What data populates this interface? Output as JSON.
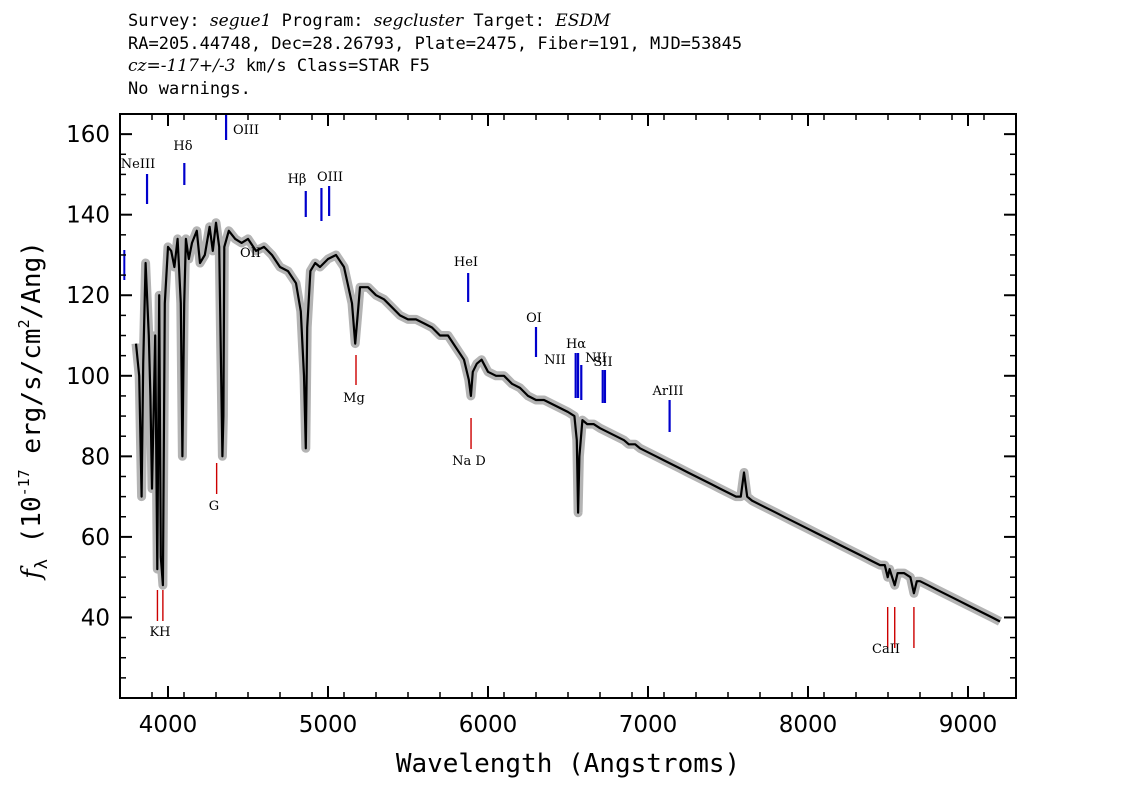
{
  "header": {
    "survey_label": "Survey:",
    "survey": "segue1",
    "program_label": "Program:",
    "program": "segcluster",
    "target_label": "Target:",
    "target": "ESDM",
    "line2": "RA=205.44748, Dec=28.26793, Plate=2475, Fiber=191, MJD=53845",
    "cz": "cz=-117+/-3",
    "line3_rest": " km/s Class=STAR F5",
    "line4": "No warnings."
  },
  "chart_data": {
    "type": "line",
    "xlabel": "Wavelength (Angstroms)",
    "ylabel_prefix": "f",
    "ylabel_sub": "λ",
    "ylabel_main": " (10",
    "ylabel_exp": "-17",
    "ylabel_units": " erg/s/cm",
    "ylabel_sq": "2",
    "ylabel_end": "/Ang)",
    "xlim": [
      3700,
      9300
    ],
    "ylim": [
      20,
      165
    ],
    "x_ticks": [
      4000,
      5000,
      6000,
      7000,
      8000,
      9000
    ],
    "x_tick_labels": [
      "4000",
      "5000",
      "6000",
      "7000",
      "8000",
      "9000"
    ],
    "y_ticks": [
      40,
      60,
      80,
      100,
      120,
      140,
      160
    ],
    "y_tick_labels": [
      "40",
      "60",
      "80",
      "100",
      "120",
      "140",
      "160"
    ],
    "colors": {
      "flux": "#000000",
      "error": "#b4b4b4",
      "emission": "#0000cc",
      "absorption": "#cc0000"
    },
    "series": [
      {
        "x": [
          3800,
          3820,
          3835,
          3845,
          3860,
          3880,
          3890,
          3900,
          3920,
          3933,
          3945,
          3955,
          3968,
          3980,
          4000,
          4020,
          4040,
          4060,
          4080,
          4090,
          4101,
          4112,
          4130,
          4150,
          4180,
          4200,
          4230,
          4260,
          4280,
          4300,
          4320,
          4340,
          4346,
          4352,
          4380,
          4420,
          4460,
          4500,
          4550,
          4600,
          4650,
          4700,
          4750,
          4800,
          4830,
          4850,
          4861,
          4870,
          4890,
          4920,
          4950,
          5000,
          5050,
          5100,
          5150,
          5170,
          5183,
          5200,
          5250,
          5300,
          5350,
          5400,
          5450,
          5500,
          5550,
          5600,
          5650,
          5700,
          5750,
          5800,
          5850,
          5880,
          5893,
          5905,
          5930,
          5960,
          6000,
          6050,
          6100,
          6150,
          6200,
          6250,
          6300,
          6350,
          6400,
          6450,
          6500,
          6540,
          6555,
          6563,
          6571,
          6590,
          6620,
          6660,
          6700,
          6750,
          6800,
          6850,
          6880,
          6900,
          6920,
          6950,
          7000,
          7050,
          7100,
          7150,
          7200,
          7250,
          7300,
          7350,
          7400,
          7450,
          7500,
          7550,
          7580,
          7600,
          7620,
          7650,
          7700,
          7750,
          7800,
          7850,
          7900,
          7950,
          8000,
          8050,
          8100,
          8150,
          8200,
          8250,
          8300,
          8350,
          8400,
          8450,
          8480,
          8498,
          8510,
          8542,
          8560,
          8600,
          8640,
          8662,
          8680,
          8700,
          8750,
          8800,
          8850,
          8900,
          8950,
          9000,
          9050,
          9100,
          9150,
          9200
        ],
        "y": [
          108,
          100,
          70,
          103,
          128,
          110,
          95,
          72,
          110,
          52,
          120,
          55,
          48,
          118,
          132,
          131,
          127,
          134,
          118,
          80,
          118,
          134,
          129,
          133,
          136,
          128,
          130,
          137,
          131,
          138,
          132,
          80,
          90,
          132,
          136,
          134,
          133,
          134,
          131,
          132,
          130,
          127,
          126,
          123,
          116,
          100,
          82,
          112,
          126,
          128,
          127,
          129,
          130,
          127,
          118,
          108,
          114,
          122,
          122,
          120,
          119,
          117,
          115,
          114,
          114,
          113,
          112,
          110,
          110,
          107,
          104,
          99,
          95,
          101,
          103,
          104,
          101,
          100,
          100,
          98,
          97,
          95,
          94,
          94,
          93,
          92,
          91,
          90,
          84,
          66,
          80,
          89,
          88,
          88,
          87,
          86,
          85,
          84,
          83,
          83,
          83,
          82,
          81,
          80,
          79,
          78,
          77,
          76,
          75,
          74,
          73,
          72,
          71,
          70,
          70,
          76,
          70,
          69,
          68,
          67,
          66,
          65,
          64,
          63,
          62,
          61,
          60,
          59,
          58,
          57,
          56,
          55,
          54,
          53,
          53,
          50,
          52,
          48,
          51,
          51,
          50,
          46,
          49,
          49,
          48,
          47,
          46,
          45,
          44,
          43,
          42,
          41,
          40,
          39
        ]
      }
    ],
    "emission_lines": [
      {
        "name": "OII",
        "x": 3727
      },
      {
        "name": "NeIII",
        "x": 3869
      },
      {
        "name": "Hδ",
        "x": 4102
      },
      {
        "name": "OIII",
        "x": 4363
      },
      {
        "name": "Hβ",
        "x": 4861
      },
      {
        "name": "OIII",
        "x": 4959
      },
      {
        "name": "OIII",
        "x": 5007
      },
      {
        "name": "HeI",
        "x": 5876
      },
      {
        "name": "OI",
        "x": 6300
      },
      {
        "name": "NII",
        "x": 6548
      },
      {
        "name": "Hα",
        "x": 6563
      },
      {
        "name": "NII",
        "x": 6583
      },
      {
        "name": "SII",
        "x": 6717
      },
      {
        "name": "SII",
        "x": 6731
      },
      {
        "name": "ArIII",
        "x": 7135
      }
    ],
    "absorption_lines": [
      {
        "name": "KH",
        "x1": 3934,
        "x2": 3968
      },
      {
        "name": "G",
        "x1": 4304
      },
      {
        "name": "Mg",
        "x1": 5175
      },
      {
        "name": "Na D",
        "x1": 5894
      },
      {
        "name": "CaII",
        "x1": 8498,
        "x2": 8542,
        "x3": 8662
      }
    ]
  }
}
